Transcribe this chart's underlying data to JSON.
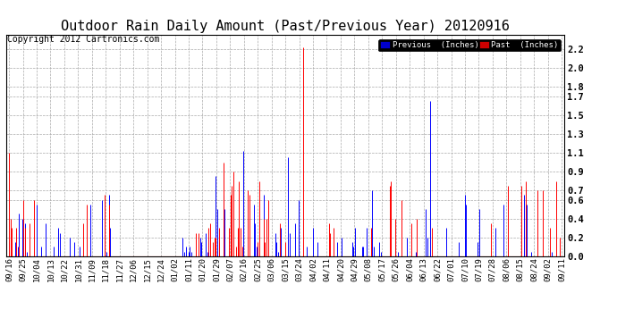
{
  "title": "Outdoor Rain Daily Amount (Past/Previous Year) 20120916",
  "copyright": "Copyright 2012 Cartronics.com",
  "ylim": [
    0.0,
    2.35
  ],
  "yticks": [
    0.0,
    0.2,
    0.4,
    0.6,
    0.7,
    0.9,
    1.1,
    1.3,
    1.5,
    1.7,
    1.8,
    2.0,
    2.2
  ],
  "legend_previous_label": "Previous  (Inches)",
  "legend_past_label": "Past  (Inches)",
  "legend_previous_color": "#0000ff",
  "legend_past_color": "#ff0000",
  "legend_bg_previous": "#0000cc",
  "legend_bg_past": "#cc0000",
  "background_color": "#ffffff",
  "grid_color": "#aaaaaa",
  "title_fontsize": 11,
  "copyright_fontsize": 7,
  "tick_label_fontsize": 6.5,
  "xtick_labels": [
    "09/16",
    "09/25",
    "10/04",
    "10/13",
    "10/22",
    "10/31",
    "11/09",
    "11/18",
    "11/27",
    "12/06",
    "12/15",
    "12/24",
    "01/02",
    "01/11",
    "01/20",
    "01/29",
    "02/07",
    "02/16",
    "02/25",
    "03/06",
    "03/15",
    "03/24",
    "04/02",
    "04/11",
    "04/20",
    "04/29",
    "05/08",
    "05/17",
    "05/26",
    "06/04",
    "06/13",
    "06/22",
    "07/01",
    "07/10",
    "07/19",
    "07/28",
    "08/06",
    "08/15",
    "08/24",
    "09/02",
    "09/11"
  ],
  "previous_data": [
    0.15,
    0.05,
    0.0,
    0.0,
    0.15,
    0.25,
    0.1,
    0.45,
    0.0,
    0.4,
    0.0,
    0.35,
    0.05,
    0.0,
    0.0,
    0.0,
    0.0,
    0.0,
    0.0,
    0.55,
    0.0,
    0.0,
    0.1,
    0.0,
    0.0,
    0.35,
    0.0,
    0.0,
    0.0,
    0.0,
    0.0,
    0.1,
    0.0,
    0.0,
    0.3,
    0.25,
    0.0,
    0.0,
    0.0,
    0.0,
    0.0,
    0.0,
    0.2,
    0.0,
    0.0,
    0.15,
    0.0,
    0.0,
    0.0,
    0.1,
    0.0,
    0.0,
    0.0,
    0.0,
    0.0,
    0.0,
    0.55,
    0.0,
    0.0,
    0.0,
    0.0,
    0.0,
    0.0,
    0.0,
    0.6,
    0.0,
    0.0,
    0.05,
    0.0,
    0.65,
    0.3,
    0.0,
    0.0,
    0.0,
    0.0,
    0.0,
    0.0,
    0.0,
    0.0,
    0.0,
    0.0,
    0.0,
    0.0,
    0.0,
    0.0,
    0.0,
    0.0,
    0.0,
    0.0,
    0.0,
    0.0,
    0.0,
    0.0,
    0.0,
    0.0,
    0.0,
    0.0,
    0.0,
    0.0,
    0.0,
    0.0,
    0.0,
    0.0,
    0.0,
    0.0,
    0.0,
    0.0,
    0.0,
    0.0,
    0.0,
    0.0,
    0.0,
    0.0,
    0.0,
    0.0,
    0.0,
    0.0,
    0.0,
    0.0,
    0.0,
    0.2,
    0.05,
    0.1,
    0.0,
    0.05,
    0.1,
    0.05,
    0.0,
    0.0,
    0.0,
    0.0,
    0.0,
    0.2,
    0.15,
    0.0,
    0.0,
    0.25,
    0.05,
    0.2,
    0.0,
    0.0,
    0.0,
    0.0,
    0.85,
    0.5,
    0.15,
    0.0,
    0.0,
    0.65,
    0.5,
    0.0,
    0.0,
    0.0,
    0.0,
    0.0,
    0.0,
    0.0,
    0.0,
    0.0,
    0.15,
    0.0,
    0.0,
    1.12,
    0.0,
    0.0,
    0.0,
    0.0,
    0.0,
    0.0,
    0.55,
    0.35,
    0.1,
    0.0,
    0.0,
    0.0,
    0.0,
    0.65,
    0.0,
    0.0,
    0.0,
    0.0,
    0.0,
    0.0,
    0.0,
    0.25,
    0.15,
    0.05,
    0.0,
    0.3,
    0.0,
    0.0,
    0.0,
    0.0,
    1.05,
    0.25,
    0.0,
    0.0,
    0.0,
    0.35,
    0.0,
    0.6,
    0.0,
    0.0,
    0.0,
    0.0,
    0.0,
    0.1,
    0.0,
    0.0,
    0.0,
    0.3,
    0.0,
    0.0,
    0.15,
    0.0,
    0.0,
    0.0,
    0.0,
    0.0,
    0.0,
    0.0,
    0.0,
    0.0,
    0.0,
    0.0,
    0.0,
    0.0,
    0.15,
    0.0,
    0.0,
    0.2,
    0.0,
    0.0,
    0.0,
    0.0,
    0.0,
    0.0,
    0.15,
    0.1,
    0.3,
    0.0,
    0.0,
    0.0,
    0.0,
    0.1,
    0.1,
    0.0,
    0.3,
    0.0,
    0.0,
    0.0,
    0.7,
    0.1,
    0.0,
    0.0,
    0.0,
    0.15,
    0.05,
    0.0,
    0.0,
    0.0,
    0.0,
    0.0,
    0.0,
    0.0,
    0.0,
    0.0,
    0.15,
    0.0,
    0.05,
    0.0,
    0.0,
    0.0,
    0.0,
    0.0,
    0.2,
    0.0,
    0.0,
    0.0,
    0.0,
    0.0,
    0.05,
    0.0,
    0.0,
    0.0,
    0.0,
    0.0,
    0.0,
    0.5,
    0.2,
    0.0,
    1.65,
    0.0,
    0.0,
    0.0,
    0.0,
    0.0,
    0.0,
    0.0,
    0.0,
    0.0,
    0.0,
    0.3,
    0.0,
    0.0,
    0.0,
    0.0,
    0.0,
    0.0,
    0.0,
    0.0,
    0.15,
    0.0,
    0.0,
    0.0,
    0.65,
    0.55,
    0.0,
    0.0,
    0.0,
    0.0,
    0.0,
    0.0,
    0.0,
    0.15,
    0.5,
    0.0,
    0.0,
    0.0,
    0.0,
    0.0,
    0.0,
    0.0,
    0.0,
    0.0,
    0.0,
    0.3,
    0.0,
    0.0,
    0.0,
    0.0,
    0.0,
    0.55,
    0.0,
    0.0,
    0.2,
    0.0,
    0.0,
    0.0,
    0.0,
    0.0,
    0.0,
    0.0,
    0.0,
    0.0,
    0.0,
    0.65,
    0.7,
    0.55,
    0.0,
    0.0,
    0.05,
    0.0,
    0.0,
    0.0,
    0.0,
    0.0,
    0.0,
    0.0,
    0.0,
    0.0,
    0.0,
    0.0,
    0.0,
    0.1,
    0.05
  ],
  "past_data": [
    1.1,
    0.4,
    0.3,
    0.0,
    0.0,
    0.3,
    0.0,
    0.1,
    0.0,
    0.0,
    0.6,
    0.3,
    0.0,
    0.0,
    0.35,
    0.0,
    0.0,
    0.6,
    0.0,
    0.0,
    0.0,
    0.0,
    0.0,
    0.0,
    0.0,
    0.0,
    0.0,
    0.0,
    0.0,
    0.0,
    0.0,
    0.0,
    0.0,
    0.0,
    0.0,
    0.0,
    0.0,
    0.0,
    0.0,
    0.0,
    0.0,
    0.0,
    0.0,
    0.0,
    0.0,
    0.0,
    0.0,
    0.0,
    0.0,
    0.0,
    0.0,
    0.35,
    0.0,
    0.0,
    0.55,
    0.0,
    0.0,
    0.0,
    0.0,
    0.0,
    0.0,
    0.0,
    0.0,
    0.0,
    0.0,
    0.0,
    0.65,
    0.0,
    0.0,
    0.55,
    0.0,
    0.0,
    0.0,
    0.0,
    0.0,
    0.0,
    0.0,
    0.0,
    0.0,
    0.0,
    0.0,
    0.0,
    0.0,
    0.0,
    0.0,
    0.0,
    0.0,
    0.0,
    0.0,
    0.0,
    0.0,
    0.0,
    0.0,
    0.0,
    0.0,
    0.0,
    0.0,
    0.0,
    0.0,
    0.0,
    0.0,
    0.0,
    0.0,
    0.0,
    0.0,
    0.0,
    0.0,
    0.0,
    0.0,
    0.0,
    0.0,
    0.0,
    0.0,
    0.0,
    0.0,
    0.0,
    0.0,
    0.0,
    0.0,
    0.0,
    0.0,
    0.0,
    0.0,
    0.0,
    0.0,
    0.0,
    0.0,
    0.0,
    0.0,
    0.25,
    0.0,
    0.25,
    0.0,
    0.0,
    0.0,
    0.0,
    0.0,
    0.0,
    0.3,
    0.35,
    0.0,
    0.15,
    0.2,
    0.2,
    0.0,
    0.3,
    0.0,
    0.0,
    1.0,
    0.0,
    0.0,
    0.0,
    0.3,
    0.65,
    0.75,
    0.9,
    0.0,
    0.1,
    0.3,
    0.8,
    0.3,
    0.1,
    0.0,
    0.0,
    0.0,
    0.7,
    0.65,
    0.0,
    0.0,
    0.0,
    0.0,
    0.0,
    0.15,
    0.8,
    0.0,
    0.0,
    0.4,
    0.15,
    0.4,
    0.6,
    0.0,
    0.0,
    0.0,
    0.0,
    0.0,
    0.0,
    0.0,
    0.35,
    0.0,
    0.0,
    0.0,
    0.15,
    0.0,
    0.0,
    0.0,
    0.0,
    0.0,
    0.0,
    0.0,
    0.0,
    0.0,
    0.0,
    0.0,
    2.22,
    0.0,
    0.0,
    0.0,
    0.0,
    0.0,
    0.0,
    0.0,
    0.0,
    0.0,
    0.0,
    0.0,
    0.0,
    0.0,
    0.0,
    0.0,
    0.0,
    0.0,
    0.35,
    0.25,
    0.0,
    0.3,
    0.0,
    0.0,
    0.0,
    0.0,
    0.0,
    0.0,
    0.0,
    0.0,
    0.0,
    0.0,
    0.0,
    0.0,
    0.0,
    0.0,
    0.0,
    0.0,
    0.0,
    0.0,
    0.0,
    0.0,
    0.0,
    0.0,
    0.0,
    0.0,
    0.0,
    0.3,
    0.0,
    0.0,
    0.0,
    0.0,
    0.0,
    0.0,
    0.0,
    0.0,
    0.0,
    0.0,
    0.0,
    0.0,
    0.75,
    0.8,
    0.0,
    0.0,
    0.4,
    0.0,
    0.0,
    0.0,
    0.6,
    0.0,
    0.0,
    0.0,
    0.0,
    0.0,
    0.0,
    0.35,
    0.0,
    0.0,
    0.0,
    0.4,
    0.0,
    0.0,
    0.0,
    0.0,
    0.0,
    0.0,
    0.0,
    0.0,
    0.0,
    0.3,
    0.0,
    0.0,
    0.0,
    0.0,
    0.0,
    0.0,
    0.0,
    0.0,
    0.0,
    0.0,
    0.0,
    0.0,
    0.0,
    0.0,
    0.0,
    0.0,
    0.0,
    0.0,
    0.0,
    0.0,
    0.0,
    0.0,
    0.0,
    0.0,
    0.0,
    0.0,
    0.0,
    0.0,
    0.0,
    0.0,
    0.0,
    0.0,
    0.0,
    0.0,
    0.0,
    0.0,
    0.0,
    0.0,
    0.0,
    0.0,
    0.35,
    0.0,
    0.0,
    0.0,
    0.0,
    0.0,
    0.0,
    0.0,
    0.0,
    0.0,
    0.0,
    0.0,
    0.75,
    0.0,
    0.0,
    0.0,
    0.0,
    0.0,
    0.0,
    0.0,
    0.0,
    0.75,
    0.0,
    0.0,
    0.8,
    0.0,
    0.0,
    0.0,
    0.0,
    0.0,
    0.0,
    0.0,
    0.7,
    0.0,
    0.0,
    0.0,
    0.7,
    0.0,
    0.0,
    0.0,
    0.0,
    0.3,
    0.0,
    0.0,
    0.0,
    0.8,
    0.0,
    0.0,
    0.2,
    0.0
  ]
}
